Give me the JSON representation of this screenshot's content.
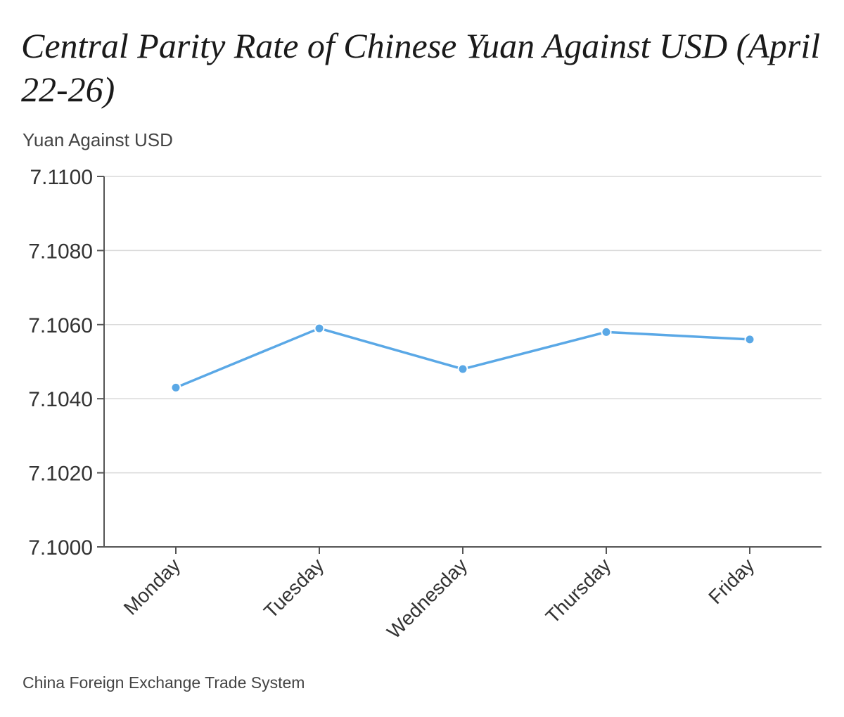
{
  "chart_data": {
    "type": "line",
    "title": "Central Parity Rate of Chinese Yuan Against USD (April 22-26)",
    "ylabel": "Yuan Against USD",
    "xlabel": "",
    "categories": [
      "Monday",
      "Tuesday",
      "Wednesday",
      "Thursday",
      "Friday"
    ],
    "series": [
      {
        "values": [
          7.1043,
          7.1059,
          7.1048,
          7.1058,
          7.1056
        ],
        "color": "#5aa8e6"
      }
    ],
    "ylim": [
      7.1,
      7.11
    ],
    "yticks": [
      "7.1000",
      "7.1020",
      "7.1040",
      "7.1060",
      "7.1080",
      "7.1100"
    ],
    "grid": true,
    "source": "China Foreign Exchange Trade System"
  }
}
